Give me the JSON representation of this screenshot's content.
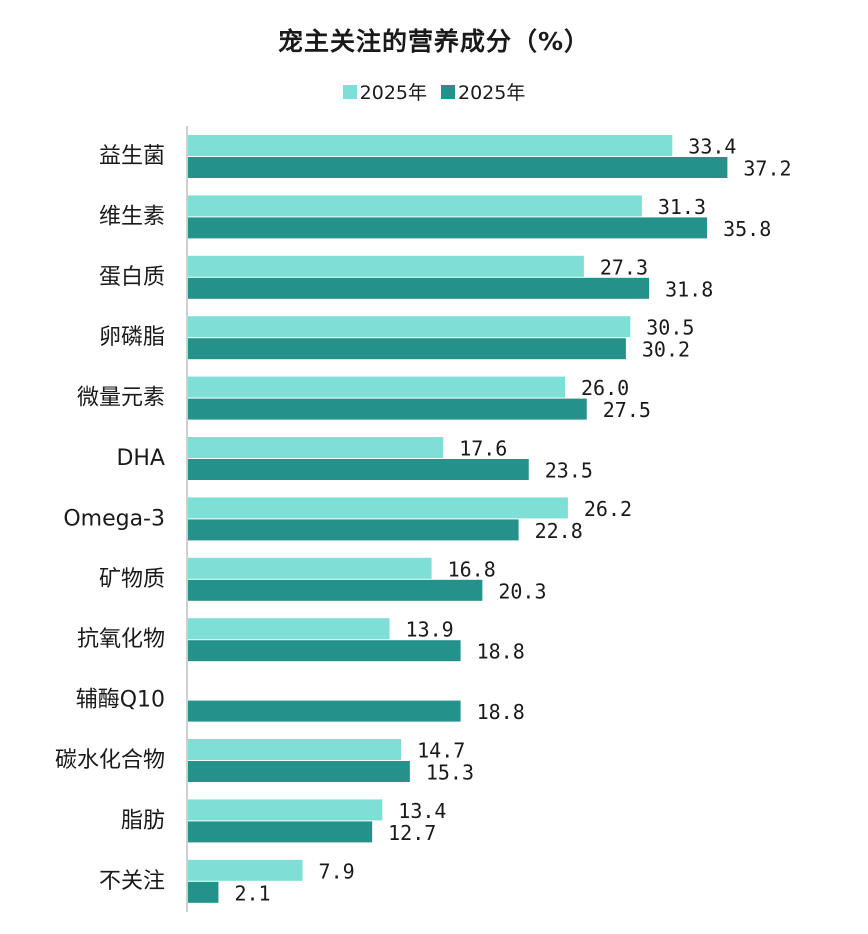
{
  "chart_data": {
    "type": "bar",
    "orientation": "horizontal",
    "title": "宠主关注的营养成分（%）",
    "xlabel": "",
    "ylabel": "",
    "xlim": [
      0,
      40
    ],
    "grid": false,
    "legend_position": "top",
    "categories": [
      "益生菌",
      "维生素",
      "蛋白质",
      "卵磷脂",
      "微量元素",
      "DHA",
      "Omega-3",
      "矿物质",
      "抗氧化物",
      "辅酶Q10",
      "碳水化合物",
      "脂肪",
      "不关注"
    ],
    "series": [
      {
        "name": "2025年",
        "color": "#7fded6",
        "values": [
          33.4,
          31.3,
          27.3,
          30.5,
          26.0,
          17.6,
          26.2,
          16.8,
          13.9,
          null,
          14.7,
          13.4,
          7.9
        ],
        "labels": [
          "33.4",
          "31.3",
          "27.3",
          "30.5",
          "26.0",
          "17.6",
          "26.2",
          "16.8",
          "13.9",
          "",
          "14.7",
          "13.4",
          "7.9"
        ]
      },
      {
        "name": "2025年",
        "color": "#24918a",
        "values": [
          37.2,
          35.8,
          31.8,
          30.2,
          27.5,
          23.5,
          22.8,
          20.3,
          18.8,
          18.8,
          15.3,
          12.7,
          2.1
        ],
        "labels": [
          "37.2",
          "35.8",
          "31.8",
          "30.2",
          "27.5",
          "23.5",
          "22.8",
          "20.3",
          "18.8",
          "18.8",
          "15.3",
          "12.7",
          "2.1"
        ]
      }
    ]
  },
  "colors": {
    "axis": "#bfbfbf",
    "text": "#1a1a1a"
  }
}
